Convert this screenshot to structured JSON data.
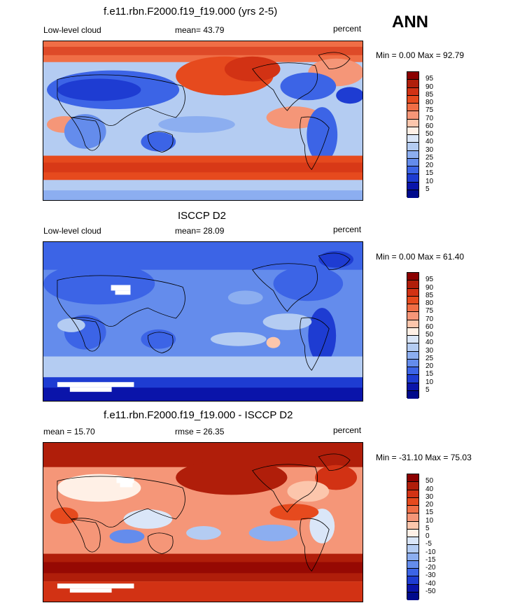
{
  "season": "ANN",
  "panels": [
    {
      "id": "model",
      "title": "f.e11.rbn.F2000.f19_f19.000 (yrs 2-5)",
      "left_label": "Low-level cloud",
      "center_label": "mean=  43.79",
      "right_label": "percent",
      "minmax": "Min =   0.00 Max =  92.79",
      "colorbar_labels": [
        "95",
        "90",
        "85",
        "80",
        "75",
        "70",
        "60",
        "50",
        "40",
        "30",
        "25",
        "20",
        "15",
        "10",
        "5"
      ]
    },
    {
      "id": "obs",
      "title": "ISCCP D2",
      "left_label": "Low-level cloud",
      "center_label": "mean=  28.09",
      "right_label": "percent",
      "minmax": "Min =   0.00 Max =  61.40",
      "colorbar_labels": [
        "95",
        "90",
        "85",
        "80",
        "75",
        "70",
        "60",
        "50",
        "40",
        "30",
        "25",
        "20",
        "15",
        "10",
        "5"
      ]
    },
    {
      "id": "diff",
      "title": "f.e11.rbn.F2000.f19_f19.000 - ISCCP D2",
      "left_label": "mean =  15.70",
      "center_label": "rmse =  26.35",
      "right_label": "percent",
      "minmax": "Min = -31.10 Max =  75.03",
      "colorbar_labels": [
        "50",
        "40",
        "30",
        "20",
        "15",
        "10",
        "5",
        "0",
        "-5",
        "-10",
        "-15",
        "-20",
        "-30",
        "-40",
        "-50"
      ]
    }
  ],
  "colors": {
    "scale": [
      "#8b0000",
      "#b01e0a",
      "#d23214",
      "#e64a1e",
      "#f06e46",
      "#f59678",
      "#fcc6ac",
      "#fff0e6",
      "#dae6f8",
      "#b4ccf2",
      "#8caef0",
      "#648cec",
      "#3c64e6",
      "#1e3cd2",
      "#0a14aa",
      "#000a8c"
    ]
  }
}
